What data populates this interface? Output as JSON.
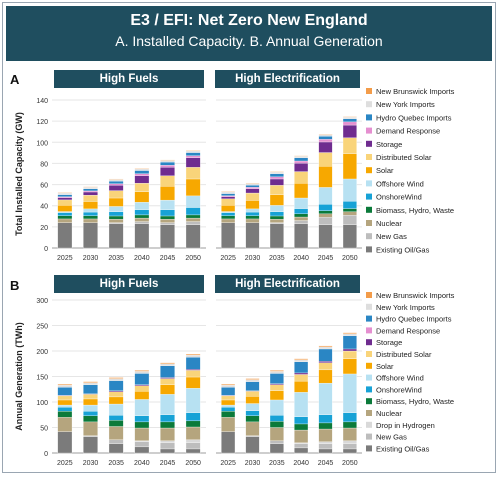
{
  "header": {
    "title": "E3 / EFI: Net Zero New England",
    "subtitle": "A. Installed Capacity.    B. Annual Generation"
  },
  "colors": {
    "Existing Oil/Gas": "#7b7b7b",
    "New Gas": "#bdbdbd",
    "Drop in Hydrogen": "#d9d9d9",
    "Nuclear": "#b5a57e",
    "Biomass, Hydro, Waste": "#0b7a3a",
    "OnshoreWind": "#17a2d6",
    "Offshore Wind": "#b7e1f2",
    "Solar": "#f7a800",
    "Distributed Solar": "#f9d47a",
    "Storage": "#6f2c8f",
    "Demand Response": "#e58fd0",
    "Hydro Quebec Imports": "#2a86c4",
    "New York Imports": "#dedede",
    "New Brunswick Imports": "#f39c4a"
  },
  "chart_data": [
    {
      "type": "bar",
      "stacked": true,
      "panel": "A",
      "title": "High Fuels",
      "ylabel": "Total Installed Capacity (GW)",
      "ylim": [
        0,
        140
      ],
      "yticks": [
        0,
        20,
        40,
        60,
        80,
        100,
        120,
        140
      ],
      "categories": [
        "2025",
        "2030",
        "2035",
        "2040",
        "2045",
        "2050"
      ],
      "series": [
        {
          "name": "Existing Oil/Gas",
          "values": [
            24,
            24,
            23,
            23,
            22,
            22
          ]
        },
        {
          "name": "New Gas",
          "values": [
            0,
            0,
            1,
            2,
            2,
            3
          ]
        },
        {
          "name": "Nuclear",
          "values": [
            3.5,
            3.5,
            3.3,
            3.3,
            3.3,
            3.3
          ]
        },
        {
          "name": "Biomass, Hydro, Waste",
          "values": [
            3,
            3,
            3,
            3,
            3,
            3
          ]
        },
        {
          "name": "OnshoreWind",
          "values": [
            3,
            3.5,
            4,
            5,
            6,
            7
          ]
        },
        {
          "name": "Offshore Wind",
          "values": [
            1,
            3,
            5,
            7,
            9,
            11
          ]
        },
        {
          "name": "Solar",
          "values": [
            6,
            7,
            8,
            10,
            13,
            16
          ]
        },
        {
          "name": "Distributed Solar",
          "values": [
            5,
            6,
            7,
            8,
            10,
            11
          ]
        },
        {
          "name": "Storage",
          "values": [
            2,
            3,
            5,
            7,
            8,
            9
          ]
        },
        {
          "name": "Demand Response",
          "values": [
            1,
            1,
            1.5,
            2,
            2,
            2
          ]
        },
        {
          "name": "Hydro Quebec Imports",
          "values": [
            2,
            2,
            2.5,
            3,
            3,
            3
          ]
        },
        {
          "name": "New York Imports",
          "values": [
            1.5,
            1.5,
            1.5,
            1.5,
            1.5,
            1.5
          ]
        },
        {
          "name": "New Brunswick Imports",
          "values": [
            0.5,
            0.5,
            0.5,
            0.5,
            0.5,
            0.5
          ]
        }
      ]
    },
    {
      "type": "bar",
      "stacked": true,
      "panel": "A",
      "title": "High Electrification",
      "ylim": [
        0,
        140
      ],
      "categories": [
        "2025",
        "2030",
        "2035",
        "2040",
        "2045",
        "2050"
      ],
      "series": [
        {
          "name": "Existing Oil/Gas",
          "values": [
            24,
            24,
            23,
            23,
            22,
            22
          ]
        },
        {
          "name": "New Gas",
          "values": [
            0,
            0,
            1,
            3,
            7,
            9
          ]
        },
        {
          "name": "Nuclear",
          "values": [
            3.5,
            3.5,
            3.3,
            3.3,
            3.3,
            3.3
          ]
        },
        {
          "name": "Biomass, Hydro, Waste",
          "values": [
            3,
            3,
            3,
            3,
            3,
            3
          ]
        },
        {
          "name": "OnshoreWind",
          "values": [
            3,
            3.5,
            4,
            5,
            6,
            7
          ]
        },
        {
          "name": "Offshore Wind",
          "values": [
            1,
            3,
            6,
            10,
            16,
            21
          ]
        },
        {
          "name": "Solar",
          "values": [
            6,
            8,
            10,
            14,
            20,
            24
          ]
        },
        {
          "name": "Distributed Solar",
          "values": [
            6,
            7,
            9,
            11,
            13,
            15
          ]
        },
        {
          "name": "Storage",
          "values": [
            2,
            4,
            6,
            8,
            10,
            12
          ]
        },
        {
          "name": "Demand Response",
          "values": [
            1,
            1.5,
            2,
            2,
            2.5,
            3
          ]
        },
        {
          "name": "Hydro Quebec Imports",
          "values": [
            2,
            2,
            3,
            3,
            3,
            3
          ]
        },
        {
          "name": "New York Imports",
          "values": [
            1.5,
            1.5,
            1.5,
            1.5,
            1.5,
            1.5
          ]
        },
        {
          "name": "New Brunswick Imports",
          "values": [
            0.5,
            0.5,
            0.5,
            0.5,
            0.5,
            0.5
          ]
        }
      ]
    },
    {
      "type": "bar",
      "stacked": true,
      "panel": "B",
      "title": "High Fuels",
      "ylabel": "Annual Generation (TWh)",
      "ylim": [
        0,
        300
      ],
      "yticks": [
        0,
        50,
        100,
        150,
        200,
        250,
        300
      ],
      "categories": [
        "2025",
        "2030",
        "2035",
        "2040",
        "2045",
        "2050"
      ],
      "series": [
        {
          "name": "Existing Oil/Gas",
          "values": [
            42,
            32,
            18,
            12,
            8,
            8
          ]
        },
        {
          "name": "New Gas",
          "values": [
            0,
            2,
            8,
            10,
            12,
            12
          ]
        },
        {
          "name": "Drop in Hydrogen",
          "values": [
            0,
            0,
            0,
            2,
            4,
            6
          ]
        },
        {
          "name": "Nuclear",
          "values": [
            28,
            27,
            26,
            25,
            25,
            25
          ]
        },
        {
          "name": "Biomass, Hydro, Waste",
          "values": [
            12,
            12,
            12,
            12,
            12,
            12
          ]
        },
        {
          "name": "OnshoreWind",
          "values": [
            8,
            9,
            10,
            12,
            14,
            16
          ]
        },
        {
          "name": "Offshore Wind",
          "values": [
            4,
            12,
            22,
            32,
            40,
            48
          ]
        },
        {
          "name": "Solar",
          "values": [
            10,
            12,
            14,
            16,
            19,
            22
          ]
        },
        {
          "name": "Distributed Solar",
          "values": [
            8,
            9,
            10,
            11,
            12,
            13
          ]
        },
        {
          "name": "Storage",
          "values": [
            1,
            1,
            2,
            2,
            2,
            2
          ]
        },
        {
          "name": "Demand Response",
          "values": [
            0,
            0,
            0,
            0,
            0,
            0
          ]
        },
        {
          "name": "Hydro Quebec Imports",
          "values": [
            16,
            18,
            20,
            22,
            23,
            24
          ]
        },
        {
          "name": "New York Imports",
          "values": [
            4,
            4,
            4,
            4,
            4,
            4
          ]
        },
        {
          "name": "New Brunswick Imports",
          "values": [
            2,
            2,
            2,
            2,
            2,
            2
          ]
        }
      ]
    },
    {
      "type": "bar",
      "stacked": true,
      "panel": "B",
      "title": "High Electrification",
      "ylim": [
        0,
        300
      ],
      "categories": [
        "2025",
        "2030",
        "2035",
        "2040",
        "2045",
        "2050"
      ],
      "series": [
        {
          "name": "Existing Oil/Gas",
          "values": [
            42,
            32,
            18,
            10,
            8,
            8
          ]
        },
        {
          "name": "New Gas",
          "values": [
            0,
            2,
            6,
            8,
            10,
            10
          ]
        },
        {
          "name": "Drop in Hydrogen",
          "values": [
            0,
            0,
            0,
            2,
            4,
            6
          ]
        },
        {
          "name": "Nuclear",
          "values": [
            28,
            27,
            26,
            25,
            25,
            25
          ]
        },
        {
          "name": "Biomass, Hydro, Waste",
          "values": [
            12,
            12,
            12,
            12,
            12,
            12
          ]
        },
        {
          "name": "OnshoreWind",
          "values": [
            8,
            10,
            12,
            14,
            16,
            18
          ]
        },
        {
          "name": "Offshore Wind",
          "values": [
            4,
            14,
            30,
            48,
            62,
            76
          ]
        },
        {
          "name": "Solar",
          "values": [
            10,
            14,
            18,
            22,
            26,
            30
          ]
        },
        {
          "name": "Distributed Solar",
          "values": [
            8,
            10,
            12,
            13,
            14,
            15
          ]
        },
        {
          "name": "Storage",
          "values": [
            1,
            1,
            2,
            3,
            3,
            4
          ]
        },
        {
          "name": "Demand Response",
          "values": [
            0,
            0,
            0,
            0,
            0,
            0
          ]
        },
        {
          "name": "Hydro Quebec Imports",
          "values": [
            16,
            18,
            20,
            22,
            24,
            26
          ]
        },
        {
          "name": "New York Imports",
          "values": [
            4,
            4,
            4,
            4,
            4,
            4
          ]
        },
        {
          "name": "New Brunswick Imports",
          "values": [
            2,
            2,
            2,
            2,
            2,
            2
          ]
        }
      ]
    }
  ],
  "legends": {
    "A": [
      "New Brunswick Imports",
      "New York Imports",
      "Hydro Quebec Imports",
      "Demand Response",
      "Storage",
      "Distributed Solar",
      "Solar",
      "Offshore Wind",
      "OnshoreWind",
      "Biomass, Hydro, Waste",
      "Nuclear",
      "New Gas",
      "Existing Oil/Gas"
    ],
    "B": [
      "New Brunswick Imports",
      "New York Imports",
      "Hydro Quebec Imports",
      "Demand Response",
      "Storage",
      "Distributed Solar",
      "Solar",
      "Offshore Wind",
      "OnshoreWind",
      "Biomass, Hydro, Waste",
      "Nuclear",
      "Drop in Hydrogen",
      "New Gas",
      "Existing Oil/Gas"
    ]
  },
  "panel_labels": {
    "A": "A",
    "B": "B"
  }
}
